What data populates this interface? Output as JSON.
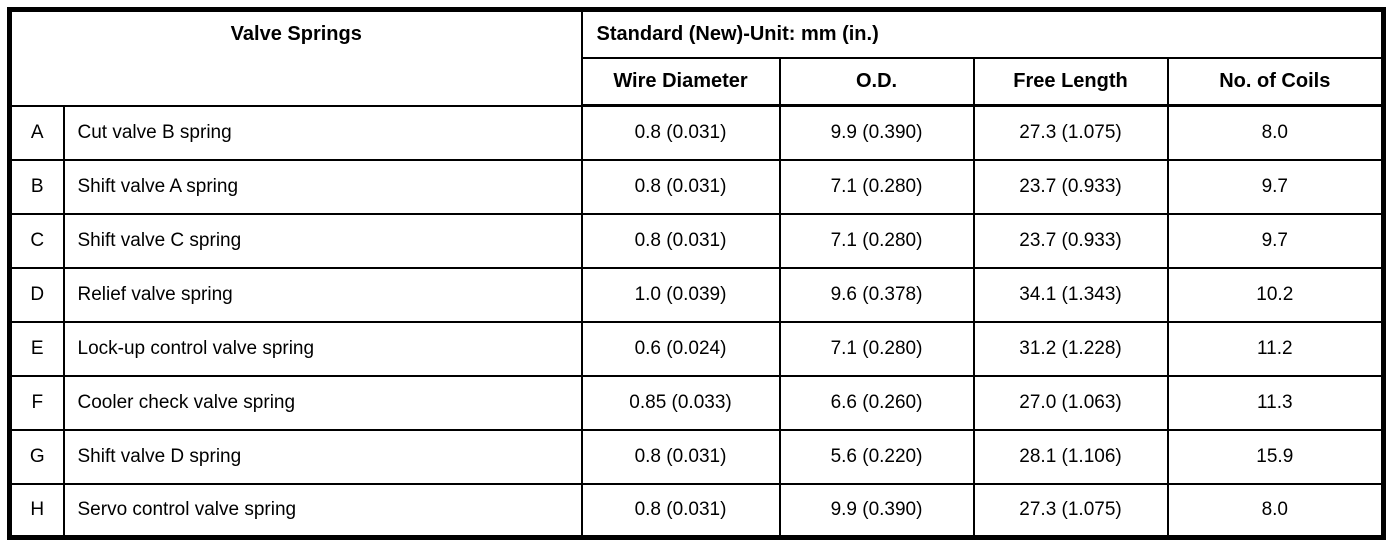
{
  "table": {
    "title": "Valve Springs",
    "standard_header": "Standard (New)-Unit: mm (in.)",
    "columns": [
      "Wire Diameter",
      "O.D.",
      "Free Length",
      "No. of Coils"
    ],
    "rows": [
      {
        "letter": "A",
        "name": "Cut valve B spring",
        "wire_diameter": "0.8 (0.031)",
        "od": "9.9 (0.390)",
        "free_length": "27.3 (1.075)",
        "coils": "8.0"
      },
      {
        "letter": "B",
        "name": "Shift valve A spring",
        "wire_diameter": "0.8 (0.031)",
        "od": "7.1 (0.280)",
        "free_length": "23.7 (0.933)",
        "coils": "9.7"
      },
      {
        "letter": "C",
        "name": "Shift valve C spring",
        "wire_diameter": "0.8 (0.031)",
        "od": "7.1 (0.280)",
        "free_length": "23.7 (0.933)",
        "coils": "9.7"
      },
      {
        "letter": "D",
        "name": "Relief valve spring",
        "wire_diameter": "1.0 (0.039)",
        "od": "9.6 (0.378)",
        "free_length": "34.1 (1.343)",
        "coils": "10.2"
      },
      {
        "letter": "E",
        "name": "Lock-up control valve spring",
        "wire_diameter": "0.6 (0.024)",
        "od": "7.1 (0.280)",
        "free_length": "31.2 (1.228)",
        "coils": "11.2"
      },
      {
        "letter": "F",
        "name": "Cooler check valve spring",
        "wire_diameter": "0.85 (0.033)",
        "od": "6.6 (0.260)",
        "free_length": "27.0 (1.063)",
        "coils": "11.3"
      },
      {
        "letter": "G",
        "name": "Shift valve D spring",
        "wire_diameter": "0.8 (0.031)",
        "od": "5.6 (0.220)",
        "free_length": "28.1 (1.106)",
        "coils": "15.9"
      },
      {
        "letter": "H",
        "name": "Servo control valve spring",
        "wire_diameter": "0.8 (0.031)",
        "od": "9.9 (0.390)",
        "free_length": "27.3 (1.075)",
        "coils": "8.0"
      }
    ]
  }
}
